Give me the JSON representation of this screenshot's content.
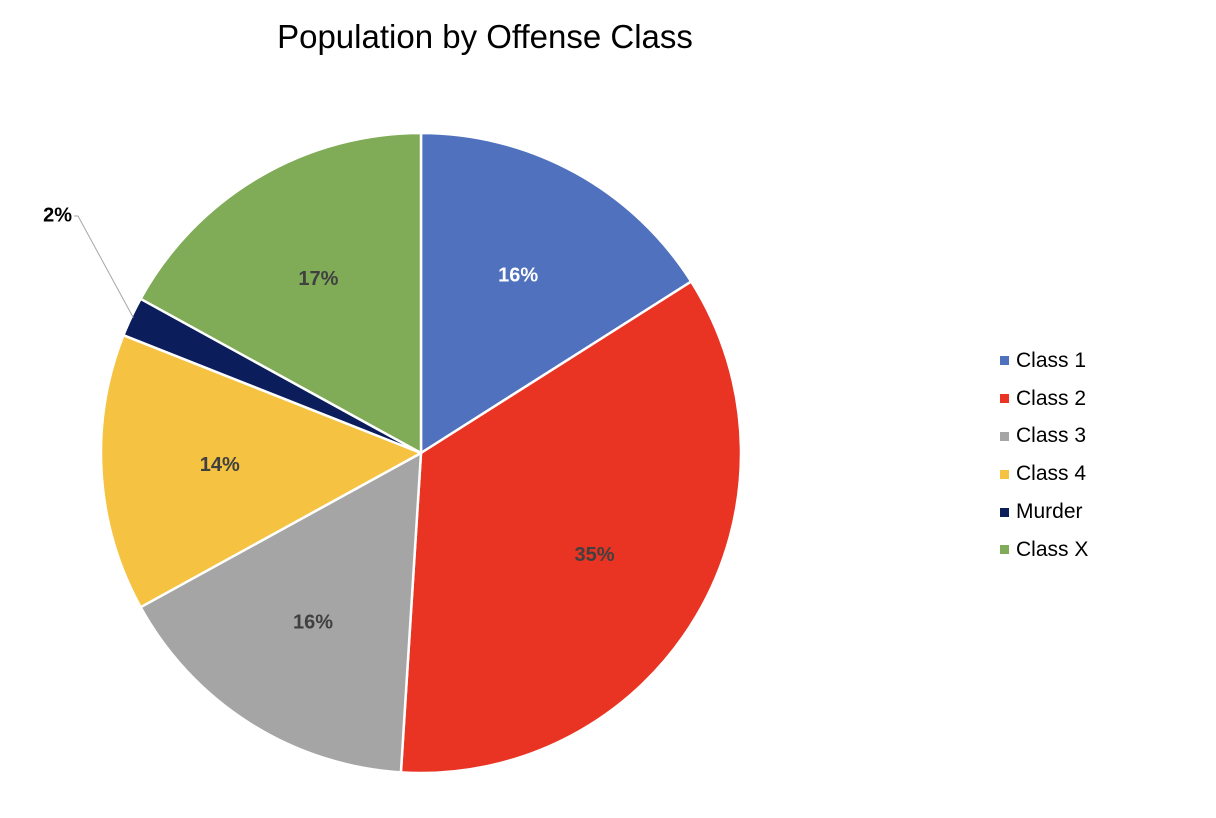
{
  "chart_data": {
    "type": "pie",
    "title": "Population by Offense Class",
    "legend_position": "right",
    "slices": [
      {
        "name": "Class 1",
        "value": 16,
        "label": "16%",
        "color": "#4F71BE",
        "label_color": "#ffffff"
      },
      {
        "name": "Class 2",
        "value": 35,
        "label": "35%",
        "color": "#E93323",
        "label_color": "#404040"
      },
      {
        "name": "Class 3",
        "value": 16,
        "label": "16%",
        "color": "#A5A5A5",
        "label_color": "#404040"
      },
      {
        "name": "Class 4",
        "value": 14,
        "label": "14%",
        "color": "#F5C242",
        "label_color": "#404040"
      },
      {
        "name": "Murder",
        "value": 2,
        "label": "2%",
        "color": "#0B1E5B",
        "label_color": "#000000"
      },
      {
        "name": "Class X",
        "value": 17,
        "label": "17%",
        "color": "#80AB57",
        "label_color": "#404040"
      }
    ]
  }
}
